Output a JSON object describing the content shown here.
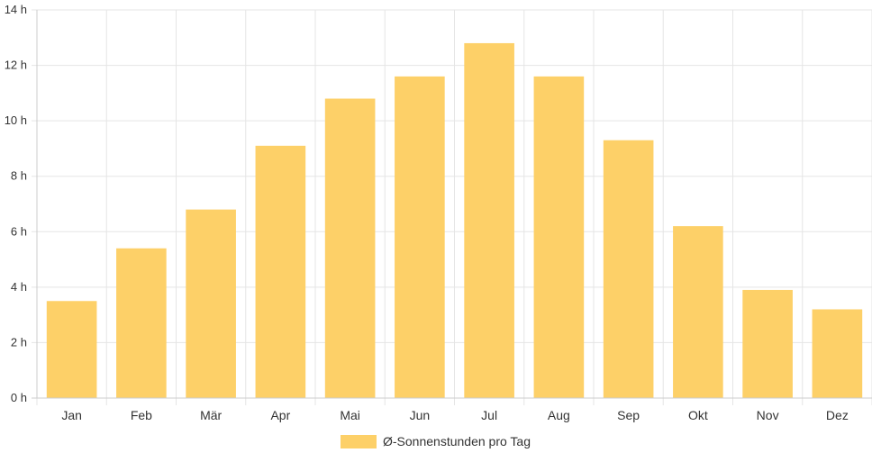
{
  "chart_data": {
    "type": "bar",
    "categories": [
      "Jan",
      "Feb",
      "Mär",
      "Apr",
      "Mai",
      "Jun",
      "Jul",
      "Aug",
      "Sep",
      "Okt",
      "Nov",
      "Dez"
    ],
    "series": [
      {
        "name": "Ø-Sonnenstunden pro Tag",
        "values": [
          3.5,
          5.4,
          6.8,
          9.1,
          10.8,
          11.6,
          12.8,
          11.6,
          9.3,
          6.2,
          3.9,
          3.2
        ],
        "color": "#fdd068"
      }
    ],
    "y_unit_suffix": " h",
    "ylim": [
      0,
      14
    ],
    "y_ticks": [
      0,
      2,
      4,
      6,
      8,
      10,
      12,
      14
    ],
    "grid": true,
    "legend_position": "bottom"
  },
  "colors": {
    "grid": "#e5e5e5",
    "axis": "#cccccc",
    "text": "#333333"
  }
}
